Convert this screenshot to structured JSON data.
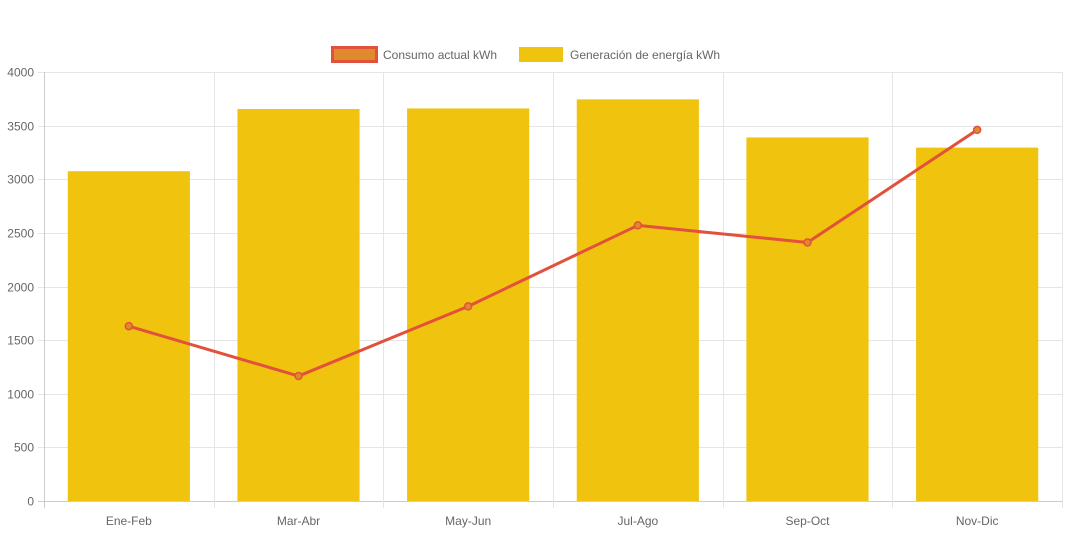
{
  "chart_data": {
    "type": "bar",
    "categories": [
      "Ene-Feb",
      "Mar-Abr",
      "May-Jun",
      "Jul-Ago",
      "Sep-Oct",
      "Nov-Dic"
    ],
    "ylim": [
      0,
      4000
    ],
    "ytick_step": 500,
    "title": "",
    "xlabel": "",
    "ylabel": "",
    "grid": true,
    "legend_position": "top",
    "series": [
      {
        "name": "Consumo actual kWh",
        "type": "line",
        "values": [
          1630,
          1165,
          1815,
          2570,
          2410,
          3460
        ],
        "color": "#e2513c",
        "fill": "#e08a2e"
      },
      {
        "name": "Generación de energía kWh",
        "type": "bar",
        "values": [
          3075,
          3655,
          3660,
          3745,
          3390,
          3295
        ],
        "color": "#f0c30f"
      }
    ]
  },
  "colors": {
    "grid": "#e5e5e5",
    "axis": "#cccccc",
    "text": "#666666"
  }
}
